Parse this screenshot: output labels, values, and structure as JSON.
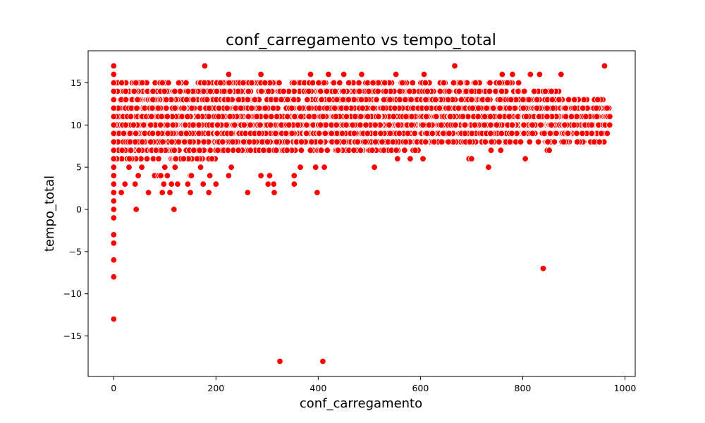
{
  "chart_data": {
    "type": "scatter",
    "title": "conf_carregamento vs tempo_total",
    "xlabel": "conf_carregamento",
    "ylabel": "tempo_total",
    "xlim": [
      -50,
      1020
    ],
    "ylim": [
      -19.8,
      18.8
    ],
    "xticks": [
      0,
      200,
      400,
      600,
      800,
      1000
    ],
    "yticks": [
      -15,
      -10,
      -5,
      0,
      5,
      10,
      15
    ],
    "grid": false,
    "legend": "none",
    "colors": {
      "marker": "#ff0000",
      "marker_edge": "#ffffff"
    },
    "outliers": [
      [
        0,
        -13
      ],
      [
        0,
        -8
      ],
      [
        0,
        -6
      ],
      [
        0,
        -4
      ],
      [
        0,
        -3
      ],
      [
        0,
        -1
      ],
      [
        0,
        0
      ],
      [
        0,
        1
      ],
      [
        0,
        2
      ],
      [
        0,
        3
      ],
      [
        0,
        4
      ],
      [
        0,
        5
      ],
      [
        0,
        6
      ],
      [
        0,
        7
      ],
      [
        0,
        8
      ],
      [
        0,
        9
      ],
      [
        0,
        10
      ],
      [
        0,
        11
      ],
      [
        0,
        12
      ],
      [
        0,
        13
      ],
      [
        0,
        14
      ],
      [
        0,
        15
      ],
      [
        0,
        16
      ],
      [
        0,
        17
      ],
      [
        325,
        -18
      ],
      [
        409,
        -18
      ],
      [
        840,
        -7
      ],
      [
        44,
        0
      ],
      [
        118,
        0
      ],
      [
        398,
        2
      ],
      [
        262,
        2
      ],
      [
        314,
        2
      ],
      [
        15,
        2
      ],
      [
        68,
        2
      ],
      [
        95,
        2
      ],
      [
        110,
        2
      ],
      [
        150,
        2
      ],
      [
        186,
        2
      ],
      [
        22,
        3
      ],
      [
        42,
        3
      ],
      [
        98,
        3
      ],
      [
        113,
        3
      ],
      [
        125,
        3
      ],
      [
        145,
        3
      ],
      [
        175,
        3
      ],
      [
        200,
        3
      ],
      [
        302,
        3
      ],
      [
        313,
        3
      ],
      [
        353,
        3
      ],
      [
        30,
        5
      ],
      [
        55,
        5
      ],
      [
        100,
        5
      ],
      [
        120,
        5
      ],
      [
        170,
        5
      ],
      [
        230,
        5
      ],
      [
        365,
        5
      ],
      [
        395,
        5
      ],
      [
        412,
        5
      ],
      [
        510,
        5
      ],
      [
        733,
        5
      ],
      [
        48,
        4
      ],
      [
        80,
        4
      ],
      [
        88,
        4
      ],
      [
        92,
        4
      ],
      [
        105,
        4
      ],
      [
        150,
        4
      ],
      [
        152,
        4
      ],
      [
        188,
        4
      ],
      [
        225,
        4
      ],
      [
        288,
        4
      ],
      [
        305,
        4
      ],
      [
        353,
        4
      ],
      [
        178,
        17
      ],
      [
        667,
        17
      ],
      [
        960,
        17
      ],
      [
        225,
        16
      ],
      [
        288,
        16
      ],
      [
        385,
        16
      ],
      [
        420,
        16
      ],
      [
        450,
        16
      ],
      [
        485,
        16
      ],
      [
        552,
        16
      ],
      [
        607,
        16
      ],
      [
        760,
        16
      ],
      [
        780,
        16
      ],
      [
        815,
        16
      ],
      [
        833,
        16
      ],
      [
        875,
        16
      ],
      [
        842,
        9
      ],
      [
        848,
        7
      ],
      [
        852,
        7
      ],
      [
        862,
        8
      ],
      [
        880,
        8
      ],
      [
        805,
        6
      ],
      [
        555,
        6
      ],
      [
        580,
        6
      ],
      [
        605,
        6
      ],
      [
        695,
        6
      ],
      [
        700,
        6
      ],
      [
        738,
        7
      ],
      [
        757,
        7
      ],
      [
        775,
        8
      ]
    ],
    "clusters": [
      {
        "x_range": [
          5,
          70
        ],
        "y_range": [
          6,
          15
        ]
      },
      {
        "x_range": [
          70,
          200
        ],
        "y_range": [
          6,
          15
        ]
      },
      {
        "x_range": [
          200,
          400
        ],
        "y_range": [
          7,
          15
        ]
      },
      {
        "x_range": [
          400,
          600
        ],
        "y_range": [
          7,
          15
        ]
      },
      {
        "x_range": [
          600,
          800
        ],
        "y_range": [
          8,
          15
        ]
      },
      {
        "x_range": [
          800,
          880
        ],
        "y_range": [
          9,
          14
        ]
      },
      {
        "x_range": [
          880,
          960
        ],
        "y_range": [
          9,
          13
        ]
      },
      {
        "x_range": [
          960,
          972
        ],
        "y_range": [
          10,
          12
        ]
      }
    ]
  }
}
